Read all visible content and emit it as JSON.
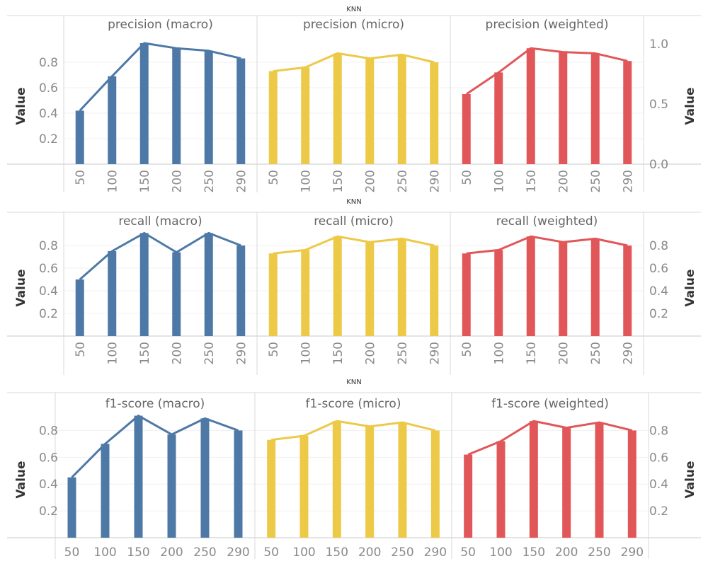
{
  "colors": {
    "macro": "#4e79a7",
    "micro": "#edc948",
    "weighted": "#e15759"
  },
  "chart_data": [
    {
      "type": "bar",
      "title": "KNN",
      "ylabel": "Value",
      "categories": [
        "50",
        "100",
        "150",
        "200",
        "250",
        "290"
      ],
      "y_ticks_left": [
        "0.2",
        "0.4",
        "0.6",
        "0.8"
      ],
      "y_ticks_right": [
        "0.0",
        "0.5",
        "1.0"
      ],
      "panels": [
        {
          "title": "precision (macro)",
          "color_key": "macro",
          "values": [
            0.42,
            0.69,
            0.95,
            0.91,
            0.89,
            0.83
          ]
        },
        {
          "title": "precision (micro)",
          "color_key": "micro",
          "values": [
            0.73,
            0.76,
            0.87,
            0.83,
            0.86,
            0.8
          ]
        },
        {
          "title": "precision (weighted)",
          "color_key": "weighted",
          "values": [
            0.55,
            0.72,
            0.91,
            0.88,
            0.87,
            0.81
          ]
        }
      ]
    },
    {
      "type": "bar",
      "title": "KNN",
      "ylabel": "Value",
      "categories": [
        "50",
        "100",
        "150",
        "200",
        "250",
        "290"
      ],
      "y_ticks_left": [
        "0.2",
        "0.4",
        "0.6",
        "0.8"
      ],
      "y_ticks_right": [
        "0.2",
        "0.4",
        "0.6",
        "0.8"
      ],
      "panels": [
        {
          "title": "recall (macro)",
          "color_key": "macro",
          "values": [
            0.5,
            0.75,
            0.91,
            0.74,
            0.91,
            0.8
          ]
        },
        {
          "title": "recall (micro)",
          "color_key": "micro",
          "values": [
            0.73,
            0.76,
            0.88,
            0.83,
            0.86,
            0.8
          ]
        },
        {
          "title": "recall (weighted)",
          "color_key": "weighted",
          "values": [
            0.73,
            0.76,
            0.88,
            0.83,
            0.86,
            0.8
          ]
        }
      ]
    },
    {
      "type": "bar",
      "title": "KNN",
      "ylabel": "Value",
      "categories": [
        "50",
        "100",
        "150",
        "200",
        "250",
        "290"
      ],
      "y_ticks_left": [
        "0.2",
        "0.4",
        "0.6",
        "0.8"
      ],
      "y_ticks_right": [
        "0.2",
        "0.4",
        "0.6",
        "0.8"
      ],
      "panels": [
        {
          "title": "f1-score (macro)",
          "color_key": "macro",
          "values": [
            0.45,
            0.7,
            0.91,
            0.77,
            0.89,
            0.8
          ]
        },
        {
          "title": "f1-score (micro)",
          "color_key": "micro",
          "values": [
            0.73,
            0.76,
            0.87,
            0.83,
            0.86,
            0.8
          ]
        },
        {
          "title": "f1-score (weighted)",
          "color_key": "weighted",
          "values": [
            0.62,
            0.72,
            0.87,
            0.82,
            0.86,
            0.8
          ]
        }
      ]
    }
  ]
}
